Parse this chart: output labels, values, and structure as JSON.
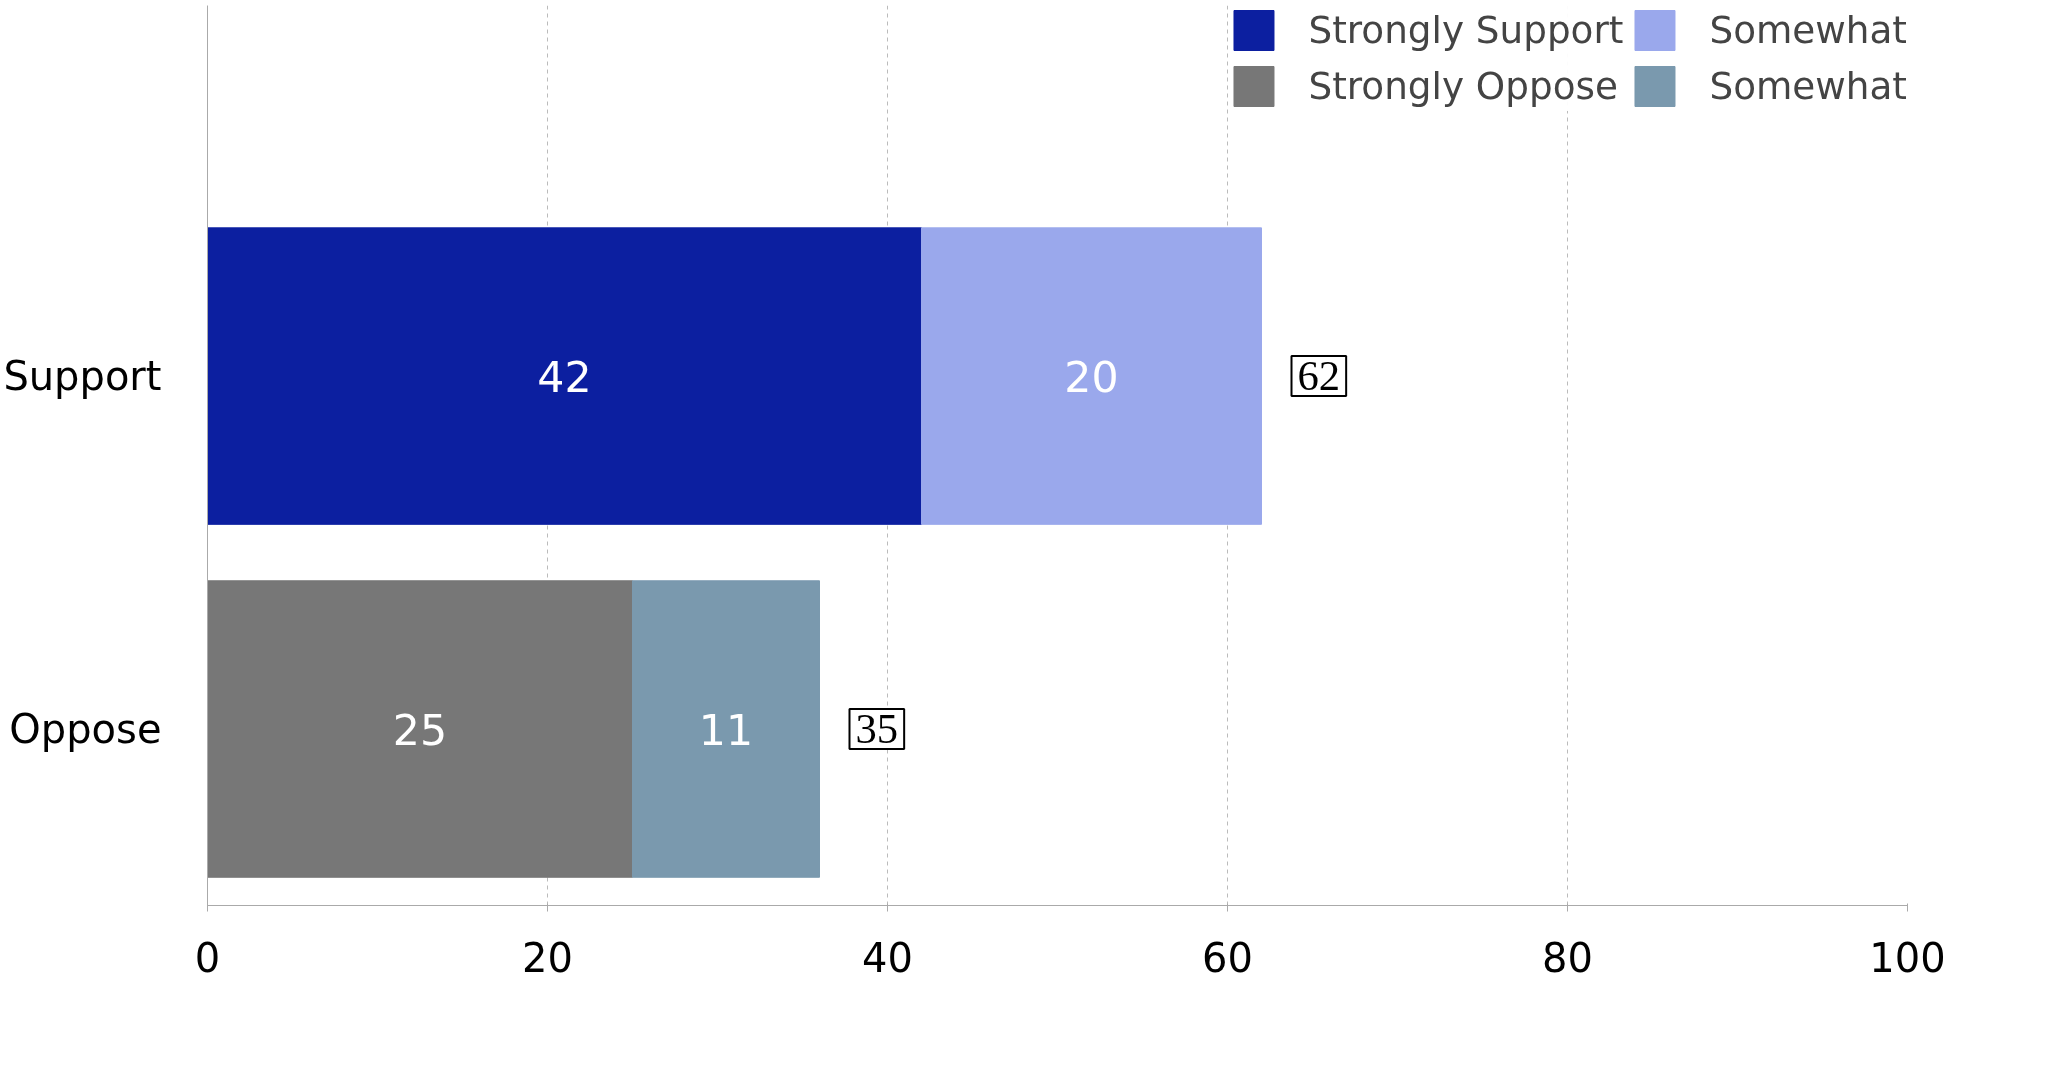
{
  "chart_data": {
    "type": "bar",
    "orientation": "horizontal",
    "stacked": true,
    "categories": [
      "Support",
      "Oppose"
    ],
    "series": [
      {
        "name": "Strongly Support",
        "color": "#0c1fa0",
        "values": [
          42,
          null
        ]
      },
      {
        "name": "Somewhat",
        "color": "#9aa8ec",
        "values": [
          20,
          null
        ]
      },
      {
        "name": "Strongly Oppose",
        "color": "#777777",
        "values": [
          null,
          25
        ]
      },
      {
        "name": "Somewhat",
        "color": "#7a99ae",
        "values": [
          null,
          11
        ]
      }
    ],
    "xlim": [
      0,
      100
    ],
    "xticks": [
      0,
      20,
      40,
      60,
      80,
      100
    ],
    "grid": "x",
    "legend": "top right",
    "data_labels": true,
    "totals": [
      "62",
      "35"
    ]
  }
}
